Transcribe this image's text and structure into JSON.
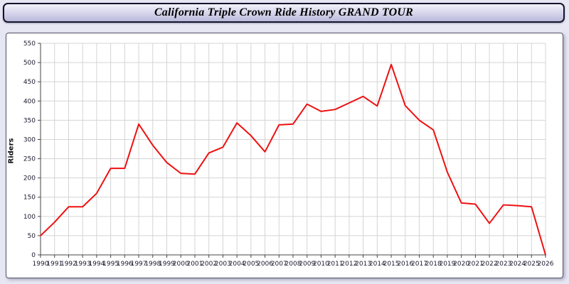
{
  "title_bar": {
    "title": "California Triple Crown Ride History GRAND TOUR"
  },
  "chart_data": {
    "type": "line",
    "title": "California Triple Crown Ride History GRAND TOUR",
    "xlabel": "",
    "ylabel": "Riders",
    "ylim": [
      0,
      550
    ],
    "ytick_step": 50,
    "grid": true,
    "legend_position": "none",
    "categories": [
      1990,
      1991,
      1992,
      1993,
      1994,
      1995,
      1996,
      1997,
      1998,
      1999,
      2000,
      2001,
      2002,
      2003,
      2004,
      2005,
      2006,
      2007,
      2008,
      2009,
      2010,
      2011,
      2012,
      2013,
      2014,
      2015,
      2016,
      2017,
      2018,
      2019,
      2020,
      2021,
      2022,
      2023,
      2024,
      2025,
      2026
    ],
    "series": [
      {
        "name": "Riders",
        "color": "#ee1111",
        "values": [
          50,
          85,
          125,
          125,
          160,
          225,
          225,
          340,
          285,
          240,
          212,
          210,
          265,
          280,
          343,
          310,
          268,
          338,
          340,
          392,
          373,
          378,
          395,
          412,
          387,
          495,
          388,
          350,
          325,
          215,
          135,
          132,
          82,
          130,
          128,
          125,
          0
        ]
      }
    ]
  },
  "style": {
    "grid_color": "#d4d4d4",
    "axis_color": "#444444",
    "tick_label_color": "#1a1a2e",
    "plot_background": "#ffffff"
  }
}
